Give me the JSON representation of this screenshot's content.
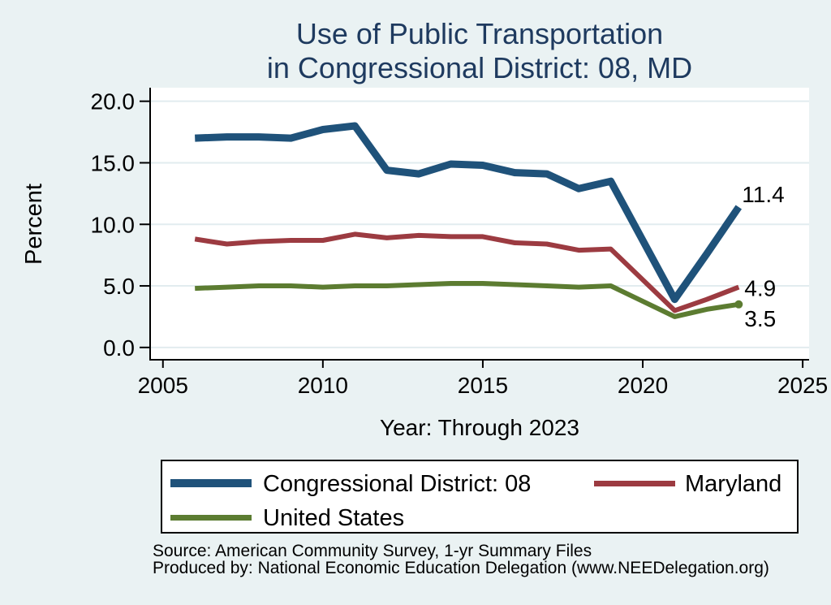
{
  "page": {
    "background": "#eaf2f3"
  },
  "header": {
    "title_line1": "Use of Public Transportation",
    "title_line2": "in Congressional District: 08, MD",
    "title_color": "#1e3a5f"
  },
  "chart_data": {
    "type": "line",
    "title": "Use of Public Transportation in Congressional District: 08, MD",
    "xlabel": "Year: Through 2023",
    "ylabel": "Percent",
    "xlim": [
      2004.6,
      2025.2
    ],
    "ylim": [
      -1.0,
      21.1
    ],
    "xticks": {
      "values": [
        2005,
        2010,
        2015,
        2020,
        2025
      ],
      "labels": [
        "2005",
        "2010",
        "2015",
        "2020",
        "2025"
      ]
    },
    "yticks": {
      "values": [
        0,
        5,
        10,
        15,
        20
      ],
      "labels": [
        "0.0",
        "5.0",
        "10.0",
        "15.0",
        "20.0"
      ]
    },
    "grid": "horizontal",
    "grid_color": "#e2ecef",
    "plot_background": "#ffffff",
    "axis_color": "#000000",
    "legend_position": "bottom",
    "note": "2020 data point not shown",
    "x": [
      2006,
      2007,
      2008,
      2009,
      2010,
      2011,
      2012,
      2013,
      2014,
      2015,
      2016,
      2017,
      2018,
      2019,
      2021,
      2022,
      2023
    ],
    "series": [
      {
        "name": "Congressional District: 08",
        "color": "#1f527a",
        "width": 9,
        "values": [
          17.0,
          17.1,
          17.1,
          17.0,
          17.7,
          18.0,
          14.4,
          14.1,
          14.9,
          14.8,
          14.2,
          14.1,
          12.9,
          13.5,
          3.9,
          7.6,
          11.4
        ],
        "end_label": "11.4",
        "end_marker": false
      },
      {
        "name": "Maryland",
        "color": "#9c3b41",
        "width": 6,
        "values": [
          8.8,
          8.4,
          8.6,
          8.7,
          8.7,
          9.2,
          8.9,
          9.1,
          9.0,
          9.0,
          8.5,
          8.4,
          7.9,
          8.0,
          3.0,
          3.9,
          4.9
        ],
        "end_label": "4.9",
        "end_marker": false
      },
      {
        "name": "United States",
        "color": "#5c7c31",
        "width": 6,
        "values": [
          4.8,
          4.9,
          5.0,
          5.0,
          4.9,
          5.0,
          5.0,
          5.1,
          5.2,
          5.2,
          5.1,
          5.0,
          4.9,
          5.0,
          2.5,
          3.1,
          3.5
        ],
        "end_label": "3.5",
        "end_marker": true
      }
    ]
  },
  "footer": {
    "source_line1": "Source: American Community Survey, 1-yr Summary Files",
    "source_line2": "Produced by: National Economic Education Delegation (www.NEEDelegation.org)"
  }
}
